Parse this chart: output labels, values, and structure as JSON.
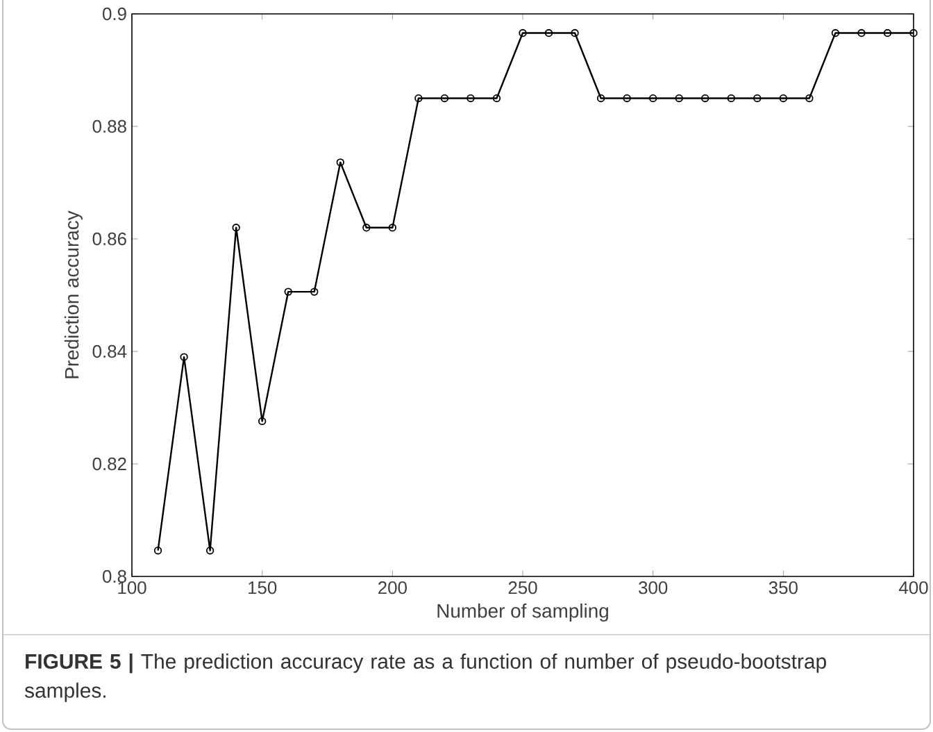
{
  "chart_data": {
    "type": "line",
    "xlabel": "Number of sampling",
    "ylabel": "Prediction accuracy",
    "x": [
      110,
      120,
      130,
      140,
      150,
      160,
      170,
      180,
      190,
      200,
      210,
      220,
      230,
      240,
      250,
      260,
      270,
      280,
      290,
      300,
      310,
      320,
      330,
      340,
      350,
      360,
      370,
      380,
      390,
      400
    ],
    "values": [
      0.8046,
      0.839,
      0.8046,
      0.862,
      0.8276,
      0.8506,
      0.8506,
      0.8736,
      0.862,
      0.862,
      0.885,
      0.885,
      0.885,
      0.885,
      0.8966,
      0.8966,
      0.8966,
      0.885,
      0.885,
      0.885,
      0.885,
      0.885,
      0.885,
      0.885,
      0.885,
      0.885,
      0.8966,
      0.8966,
      0.8966,
      0.8966
    ],
    "color": "#000000",
    "marker": "circle",
    "line_style": "solid",
    "grid": false,
    "xlim": [
      100,
      400
    ],
    "xticks": [
      100,
      150,
      200,
      250,
      300,
      350,
      400
    ],
    "ylim": [
      0.8,
      0.9
    ],
    "yticks": [
      0.8,
      0.82,
      0.84,
      0.86,
      0.88,
      0.9
    ],
    "annotations": [
      "**FIGURE 5 |** The prediction accuracy rate as a function of number of pseudo-bootstrap samples."
    ]
  }
}
